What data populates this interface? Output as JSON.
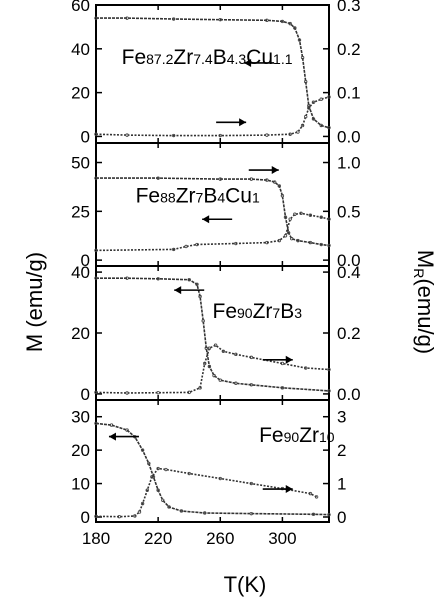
{
  "chart_data": {
    "type": "line",
    "x_axis": {
      "label": "T(K)",
      "ticks": [
        180,
        220,
        260,
        300
      ],
      "range": [
        180,
        330
      ]
    },
    "left_axis_label": "M (emu/g)",
    "right_axis_label": "M",
    "right_axis_label_sub": "R",
    "right_axis_label_tail": "(emu/g)",
    "panels": [
      {
        "formula": [
          {
            "t": "Fe",
            "sub": false
          },
          {
            "t": "87.2",
            "sub": true
          },
          {
            "t": "Zr",
            "sub": false
          },
          {
            "t": "7.4",
            "sub": true
          },
          {
            "t": "B",
            "sub": false
          },
          {
            "t": "4.3",
            "sub": true
          },
          {
            "t": "Cu",
            "sub": false
          },
          {
            "t": "1.1",
            "sub": true
          }
        ],
        "left_ylim": [
          -3,
          60
        ],
        "left_ticks": [
          0,
          20,
          40,
          60
        ],
        "right_ylim": [
          -0.015,
          0.3
        ],
        "right_ticks": [
          "0.0",
          "0.1",
          "0.2",
          "0.3"
        ],
        "series": [
          {
            "axis": "left",
            "x": [
              180,
              200,
              230,
              260,
              290,
              300,
              305,
              308,
              311,
              313,
              315,
              317,
              320,
              325,
              330
            ],
            "y": [
              54,
              54,
              53.6,
              53.3,
              53,
              52.5,
              51.5,
              49.5,
              44,
              36,
              25,
              14,
              8,
              5,
              4
            ]
          },
          {
            "axis": "right",
            "x": [
              180,
              200,
              230,
              260,
              290,
              305,
              310,
              313,
              315,
              317,
              320,
              325,
              330
            ],
            "y": [
              0.005,
              0.003,
              0.002,
              0.002,
              0.003,
              0.005,
              0.01,
              0.025,
              0.045,
              0.065,
              0.078,
              0.085,
              0.09
            ]
          }
        ]
      },
      {
        "formula": [
          {
            "t": "Fe",
            "sub": false
          },
          {
            "t": "88",
            "sub": true
          },
          {
            "t": "Zr",
            "sub": false
          },
          {
            "t": "7",
            "sub": true
          },
          {
            "t": "B",
            "sub": false
          },
          {
            "t": "4",
            "sub": true
          },
          {
            "t": "Cu",
            "sub": false
          },
          {
            "t": "1",
            "sub": true
          }
        ],
        "left_ylim": [
          -3,
          60
        ],
        "left_ticks": [
          0,
          25,
          50
        ],
        "right_ylim": [
          -0.06,
          1.2
        ],
        "right_ticks": [
          "0.0",
          "0.5",
          "1.0"
        ],
        "series": [
          {
            "axis": "left",
            "x": [
              180,
              220,
              260,
              280,
              290,
              295,
              298,
              300,
              302,
              304,
              306,
              310,
              318,
              325,
              330
            ],
            "y": [
              42,
              42,
              41.5,
              41.5,
              41,
              40,
              38,
              33,
              22,
              14,
              11,
              10,
              9,
              8,
              7.5
            ]
          },
          {
            "axis": "right",
            "x": [
              180,
              230,
              238,
              245,
              270,
              290,
              298,
              302,
              305,
              308,
              312,
              318,
              325,
              330
            ],
            "y": [
              0.1,
              0.11,
              0.14,
              0.16,
              0.17,
              0.18,
              0.2,
              0.25,
              0.42,
              0.47,
              0.48,
              0.46,
              0.44,
              0.42
            ]
          }
        ]
      },
      {
        "formula": [
          {
            "t": "Fe",
            "sub": false
          },
          {
            "t": "90",
            "sub": true
          },
          {
            "t": "Zr",
            "sub": false
          },
          {
            "t": "7",
            "sub": true
          },
          {
            "t": "B",
            "sub": false
          },
          {
            "t": "3",
            "sub": true
          }
        ],
        "left_ylim": [
          -2,
          42
        ],
        "left_ticks": [
          0,
          20,
          40
        ],
        "right_ylim": [
          -0.02,
          0.42
        ],
        "right_ticks": [
          "0.0",
          "0.2",
          "0.4"
        ],
        "series": [
          {
            "axis": "left",
            "x": [
              180,
              200,
              220,
              240,
              245,
              247,
              249,
              251,
              253,
              256,
              260,
              270,
              280,
              300,
              330
            ],
            "y": [
              38,
              38,
              37.8,
              37.5,
              36,
              32,
              24,
              15,
              9,
              6,
              4.5,
              3.5,
              3,
              2,
              1
            ]
          },
          {
            "axis": "right",
            "x": [
              180,
              200,
              220,
              240,
              247,
              250,
              253,
              257,
              262,
              270,
              280,
              300,
              315,
              330
            ],
            "y": [
              0.005,
              0.003,
              0.004,
              0.005,
              0.02,
              0.1,
              0.15,
              0.16,
              0.14,
              0.13,
              0.12,
              0.1,
              0.085,
              0.08
            ]
          }
        ]
      },
      {
        "formula": [
          {
            "t": "Fe",
            "sub": false
          },
          {
            "t": "90",
            "sub": true
          },
          {
            "t": "Zr",
            "sub": false
          },
          {
            "t": "10",
            "sub": true
          }
        ],
        "left_ylim": [
          -1.5,
          35
        ],
        "left_ticks": [
          0,
          10,
          20,
          30
        ],
        "right_ylim": [
          -0.15,
          3.5
        ],
        "right_ticks": [
          "0",
          "1",
          "2",
          "3"
        ],
        "series": [
          {
            "axis": "left",
            "x": [
              180,
              190,
              200,
              205,
              210,
              214,
              217,
              220,
              223,
              227,
              235,
              250,
              280,
              320,
              330
            ],
            "y": [
              28,
              27.5,
              26,
              24,
              20,
              16,
              12,
              8,
              5,
              3,
              1.8,
              1.2,
              1,
              0.8,
              0.7
            ]
          },
          {
            "axis": "right",
            "x": [
              180,
              195,
              205,
              208,
              210,
              213,
              216,
              220,
              225,
              240,
              260,
              280,
              300,
              318,
              322
            ],
            "y": [
              0.02,
              0.01,
              0.03,
              0.15,
              0.4,
              0.8,
              1.2,
              1.45,
              1.42,
              1.3,
              1.15,
              1.0,
              0.85,
              0.7,
              0.6
            ]
          }
        ]
      }
    ],
    "legend_arrows": [
      {
        "panel": 0,
        "pointing": "left",
        "at_axis": "left"
      },
      {
        "panel": 0,
        "pointing": "right",
        "at_axis": "right"
      },
      {
        "panel": 1,
        "pointing": "right",
        "at_axis": "right"
      },
      {
        "panel": 1,
        "pointing": "left",
        "at_axis": "left"
      },
      {
        "panel": 2,
        "pointing": "left",
        "at_axis": "left"
      },
      {
        "panel": 2,
        "pointing": "right",
        "at_axis": "right"
      },
      {
        "panel": 3,
        "pointing": "left",
        "at_axis": "left"
      },
      {
        "panel": 3,
        "pointing": "right",
        "at_axis": "right"
      }
    ]
  }
}
